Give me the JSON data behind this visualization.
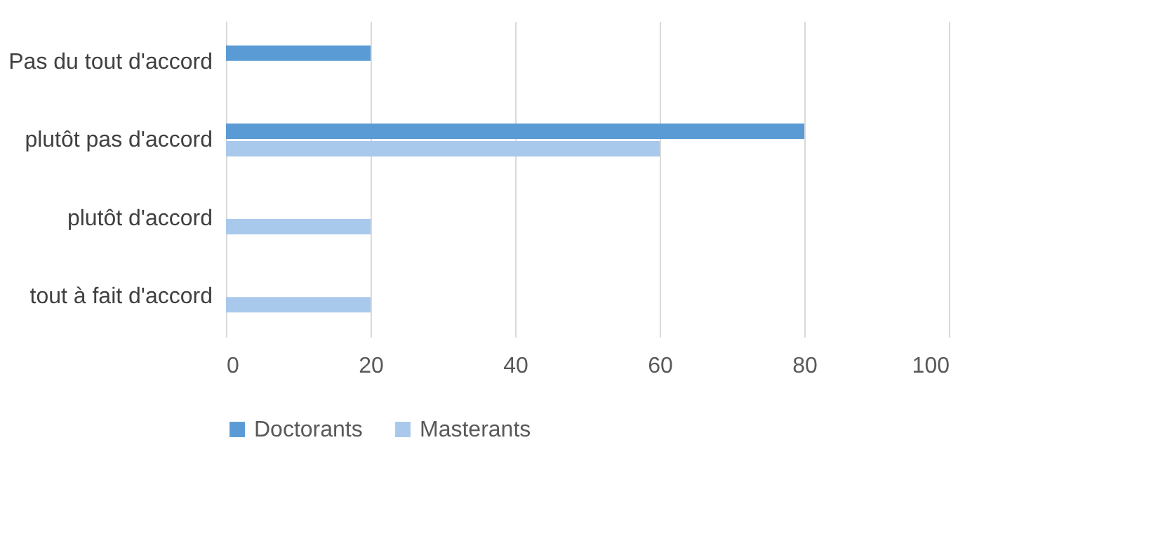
{
  "chart_data": {
    "type": "bar",
    "orientation": "horizontal",
    "categories": [
      "Pas du tout d'accord",
      "plutôt pas d'accord",
      "plutôt d'accord",
      "tout à fait d'accord"
    ],
    "series": [
      {
        "name": "Doctorants",
        "color": "#5b9bd5",
        "values": [
          20,
          80,
          0,
          0
        ]
      },
      {
        "name": "Masterants",
        "color": "#a9c9ec",
        "values": [
          0,
          60,
          20,
          20
        ]
      }
    ],
    "xlim": [
      0,
      100
    ],
    "xticks": [
      0,
      20,
      40,
      60,
      80,
      100
    ],
    "grid": "x",
    "legend": "bottom"
  }
}
